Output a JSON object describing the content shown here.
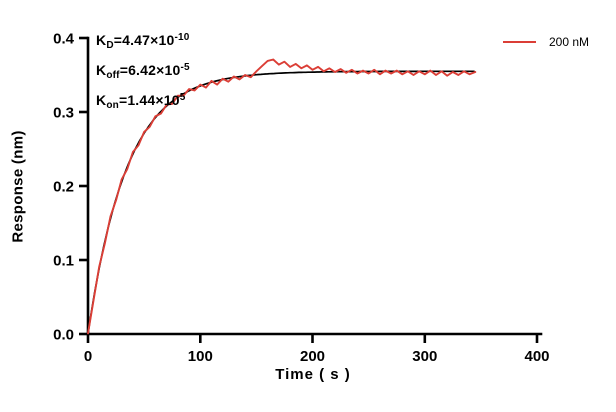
{
  "figure": {
    "annotations": [
      {
        "pre": "K",
        "sub": "D",
        "mid": "=4.47×10",
        "sup": "-10"
      },
      {
        "pre": "K",
        "sub": "off",
        "mid": "=6.42×10",
        "sup": "-5"
      },
      {
        "pre": "K",
        "sub": "on",
        "mid": "=1.44×10",
        "sup": "5"
      }
    ],
    "legend": {
      "label": "200 nM",
      "color": "#db3e36"
    }
  },
  "chart_data": {
    "type": "line",
    "title": "",
    "xlabel": "Time ( s )",
    "ylabel": "Response (nm)",
    "xlim": [
      0,
      400
    ],
    "ylim": [
      0,
      0.4
    ],
    "xticks": [
      "0",
      "100",
      "200",
      "300",
      "400"
    ],
    "yticks": [
      "0.0",
      "0.1",
      "0.2",
      "0.3",
      "0.4"
    ],
    "grid": false,
    "legend_position": "top-right-outside",
    "axis_color": "#000000",
    "kinetics": {
      "KD": 4.47e-10,
      "koff": 6.42e-05,
      "kon": 144000.0
    },
    "series": [
      {
        "name": "fit",
        "type": "fit",
        "color": "#000000",
        "model": "one-phase-association",
        "rmax": 0.355,
        "kobs": 0.0289,
        "t_range": [
          0,
          345
        ]
      },
      {
        "name": "200 nM",
        "type": "measured",
        "color": "#db3e36",
        "points": [
          [
            0,
            0.001
          ],
          [
            5,
            0.046
          ],
          [
            10,
            0.091
          ],
          [
            15,
            0.122
          ],
          [
            20,
            0.159
          ],
          [
            25,
            0.181
          ],
          [
            30,
            0.209
          ],
          [
            35,
            0.223
          ],
          [
            40,
            0.246
          ],
          [
            45,
            0.255
          ],
          [
            50,
            0.273
          ],
          [
            55,
            0.28
          ],
          [
            60,
            0.294
          ],
          [
            65,
            0.298
          ],
          [
            70,
            0.31
          ],
          [
            75,
            0.311
          ],
          [
            80,
            0.322
          ],
          [
            85,
            0.322
          ],
          [
            90,
            0.331
          ],
          [
            95,
            0.329
          ],
          [
            100,
            0.337
          ],
          [
            105,
            0.333
          ],
          [
            110,
            0.342
          ],
          [
            115,
            0.337
          ],
          [
            120,
            0.345
          ],
          [
            125,
            0.341
          ],
          [
            130,
            0.348
          ],
          [
            135,
            0.344
          ],
          [
            140,
            0.35
          ],
          [
            145,
            0.347
          ],
          [
            150,
            0.355
          ],
          [
            155,
            0.362
          ],
          [
            160,
            0.369
          ],
          [
            165,
            0.371
          ],
          [
            170,
            0.364
          ],
          [
            175,
            0.368
          ],
          [
            180,
            0.361
          ],
          [
            185,
            0.365
          ],
          [
            190,
            0.359
          ],
          [
            195,
            0.363
          ],
          [
            200,
            0.357
          ],
          [
            205,
            0.361
          ],
          [
            210,
            0.355
          ],
          [
            215,
            0.359
          ],
          [
            220,
            0.354
          ],
          [
            225,
            0.358
          ],
          [
            230,
            0.353
          ],
          [
            235,
            0.357
          ],
          [
            240,
            0.352
          ],
          [
            245,
            0.356
          ],
          [
            250,
            0.352
          ],
          [
            255,
            0.357
          ],
          [
            260,
            0.351
          ],
          [
            265,
            0.356
          ],
          [
            270,
            0.352
          ],
          [
            275,
            0.356
          ],
          [
            280,
            0.351
          ],
          [
            285,
            0.355
          ],
          [
            290,
            0.35
          ],
          [
            295,
            0.355
          ],
          [
            300,
            0.351
          ],
          [
            305,
            0.356
          ],
          [
            310,
            0.35
          ],
          [
            315,
            0.355
          ],
          [
            320,
            0.349
          ],
          [
            325,
            0.354
          ],
          [
            330,
            0.35
          ],
          [
            335,
            0.355
          ],
          [
            340,
            0.351
          ],
          [
            345,
            0.354
          ]
        ]
      }
    ]
  }
}
